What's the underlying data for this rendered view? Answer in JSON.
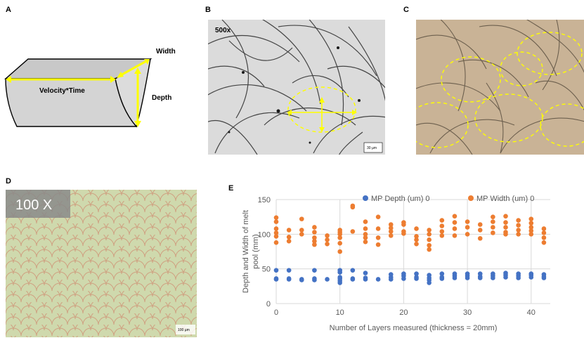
{
  "panels": {
    "a": {
      "letter": "A",
      "width_label": "Width",
      "depth_label": "Depth",
      "length_label": "Velocity*Time"
    },
    "b": {
      "letter": "B",
      "magnification": "500x",
      "scale_bar": "30 µm"
    },
    "c": {
      "letter": "C"
    },
    "d": {
      "letter": "D",
      "magnification": "100 X",
      "scale_bar": "100 µm"
    },
    "e": {
      "letter": "E"
    }
  },
  "colors": {
    "depth": "#4472c4",
    "width": "#ed7d31",
    "highlight": "#ffff00"
  },
  "chart_data": {
    "type": "scatter",
    "title": "",
    "xlabel": "Number of Layers measured (thickness = 20mm)",
    "ylabel": "Depth and Width of melt pool (mm)",
    "xlim": [
      0,
      43
    ],
    "ylim": [
      0,
      150
    ],
    "xticks": [
      0,
      10,
      20,
      30,
      40
    ],
    "yticks": [
      0,
      50,
      100,
      150
    ],
    "grid": "horizontal",
    "legend_position": "top",
    "series": [
      {
        "name": "MP Depth (um) 0",
        "color": "#4472c4",
        "points": [
          [
            0,
            48
          ],
          [
            0,
            36
          ],
          [
            0,
            35
          ],
          [
            2,
            48
          ],
          [
            2,
            36
          ],
          [
            2,
            35
          ],
          [
            4,
            35
          ],
          [
            4,
            34
          ],
          [
            6,
            48
          ],
          [
            6,
            36
          ],
          [
            6,
            34
          ],
          [
            8,
            35
          ],
          [
            10,
            48
          ],
          [
            10,
            45
          ],
          [
            10,
            38
          ],
          [
            10,
            36
          ],
          [
            10,
            33
          ],
          [
            10,
            30
          ],
          [
            12,
            48
          ],
          [
            12,
            36
          ],
          [
            12,
            35
          ],
          [
            14,
            44
          ],
          [
            14,
            37
          ],
          [
            14,
            35
          ],
          [
            16,
            35
          ],
          [
            18,
            42
          ],
          [
            18,
            38
          ],
          [
            18,
            35
          ],
          [
            20,
            43
          ],
          [
            20,
            40
          ],
          [
            20,
            36
          ],
          [
            22,
            43
          ],
          [
            22,
            38
          ],
          [
            22,
            36
          ],
          [
            24,
            41
          ],
          [
            24,
            37
          ],
          [
            24,
            34
          ],
          [
            24,
            30
          ],
          [
            26,
            43
          ],
          [
            26,
            38
          ],
          [
            26,
            36
          ],
          [
            28,
            43
          ],
          [
            28,
            40
          ],
          [
            28,
            37
          ],
          [
            30,
            43
          ],
          [
            30,
            40
          ],
          [
            30,
            37
          ],
          [
            32,
            43
          ],
          [
            32,
            39
          ],
          [
            32,
            37
          ],
          [
            34,
            43
          ],
          [
            34,
            40
          ],
          [
            34,
            37
          ],
          [
            36,
            44
          ],
          [
            36,
            41
          ],
          [
            36,
            38
          ],
          [
            38,
            43
          ],
          [
            38,
            40
          ],
          [
            38,
            37
          ],
          [
            40,
            43
          ],
          [
            40,
            41
          ],
          [
            40,
            38
          ],
          [
            42,
            42
          ],
          [
            42,
            39
          ],
          [
            42,
            37
          ]
        ]
      },
      {
        "name": "MP Width (um) 0",
        "color": "#ed7d31",
        "points": [
          [
            0,
            124
          ],
          [
            0,
            118
          ],
          [
            0,
            108
          ],
          [
            0,
            102
          ],
          [
            0,
            97
          ],
          [
            0,
            88
          ],
          [
            2,
            106
          ],
          [
            2,
            96
          ],
          [
            2,
            90
          ],
          [
            4,
            122
          ],
          [
            4,
            106
          ],
          [
            4,
            100
          ],
          [
            6,
            110
          ],
          [
            6,
            103
          ],
          [
            6,
            95
          ],
          [
            6,
            90
          ],
          [
            6,
            85
          ],
          [
            8,
            98
          ],
          [
            8,
            92
          ],
          [
            8,
            86
          ],
          [
            10,
            106
          ],
          [
            10,
            103
          ],
          [
            10,
            100
          ],
          [
            10,
            95
          ],
          [
            10,
            87
          ],
          [
            10,
            75
          ],
          [
            12,
            139
          ],
          [
            12,
            141
          ],
          [
            12,
            104
          ],
          [
            14,
            118
          ],
          [
            14,
            108
          ],
          [
            14,
            100
          ],
          [
            14,
            95
          ],
          [
            14,
            89
          ],
          [
            16,
            125
          ],
          [
            16,
            108
          ],
          [
            16,
            95
          ],
          [
            16,
            85
          ],
          [
            18,
            114
          ],
          [
            18,
            109
          ],
          [
            18,
            104
          ],
          [
            18,
            98
          ],
          [
            20,
            117
          ],
          [
            20,
            114
          ],
          [
            20,
            104
          ],
          [
            20,
            101
          ],
          [
            22,
            108
          ],
          [
            22,
            97
          ],
          [
            22,
            92
          ],
          [
            22,
            86
          ],
          [
            24,
            106
          ],
          [
            24,
            100
          ],
          [
            24,
            92
          ],
          [
            24,
            84
          ],
          [
            24,
            78
          ],
          [
            26,
            120
          ],
          [
            26,
            112
          ],
          [
            26,
            104
          ],
          [
            26,
            98
          ],
          [
            28,
            126
          ],
          [
            28,
            117
          ],
          [
            28,
            108
          ],
          [
            28,
            98
          ],
          [
            30,
            118
          ],
          [
            30,
            110
          ],
          [
            30,
            100
          ],
          [
            32,
            114
          ],
          [
            32,
            106
          ],
          [
            32,
            94
          ],
          [
            34,
            125
          ],
          [
            34,
            118
          ],
          [
            34,
            110
          ],
          [
            34,
            102
          ],
          [
            36,
            126
          ],
          [
            36,
            117
          ],
          [
            36,
            110
          ],
          [
            36,
            103
          ],
          [
            36,
            100
          ],
          [
            38,
            120
          ],
          [
            38,
            113
          ],
          [
            38,
            106
          ],
          [
            38,
            100
          ],
          [
            40,
            122
          ],
          [
            40,
            116
          ],
          [
            40,
            110
          ],
          [
            40,
            105
          ],
          [
            40,
            100
          ],
          [
            42,
            108
          ],
          [
            42,
            102
          ],
          [
            42,
            95
          ],
          [
            42,
            88
          ]
        ]
      }
    ]
  }
}
